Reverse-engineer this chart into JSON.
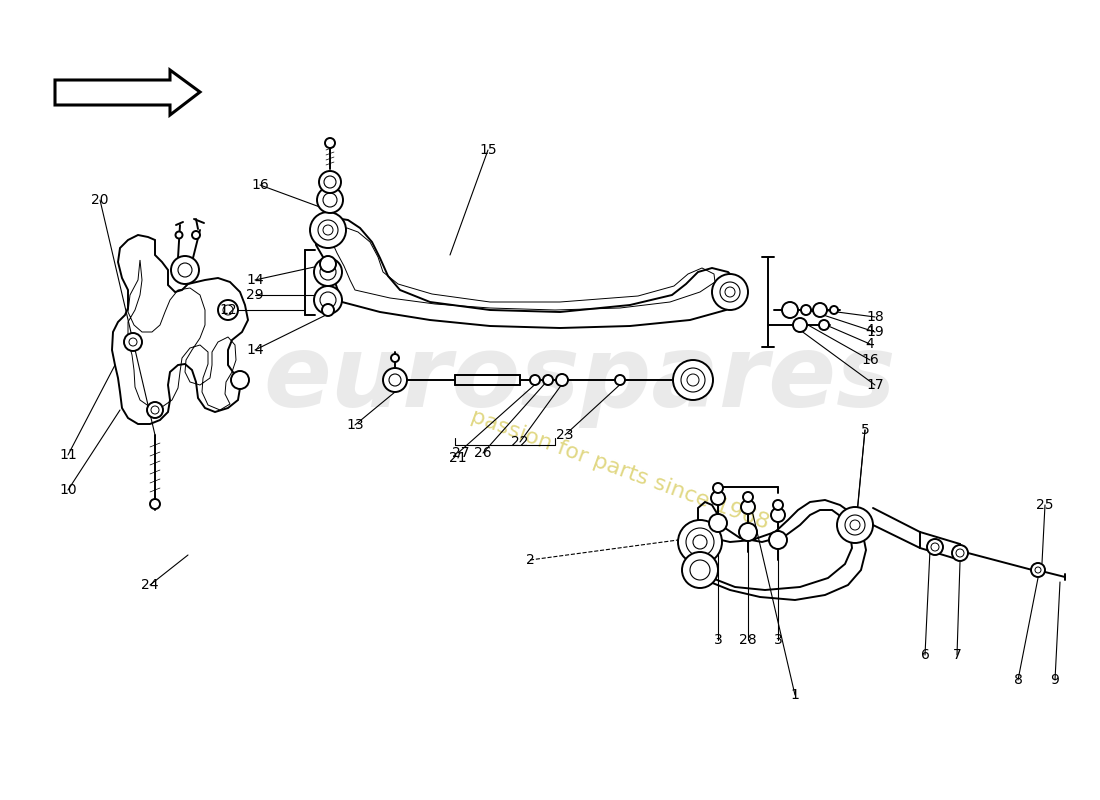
{
  "bg_color": "#ffffff",
  "line_color": "#000000",
  "lw_main": 1.4,
  "lw_thin": 0.8,
  "label_fs": 10,
  "watermark_text": "eurospares",
  "watermark_subtext": "passion for parts since 1968",
  "labels": [
    [
      "1",
      795,
      105
    ],
    [
      "2",
      530,
      240
    ],
    [
      "3",
      718,
      160
    ],
    [
      "28",
      748,
      160
    ],
    [
      "3",
      778,
      160
    ],
    [
      "4",
      870,
      470
    ],
    [
      "5",
      865,
      370
    ],
    [
      "6",
      925,
      145
    ],
    [
      "7",
      957,
      145
    ],
    [
      "8",
      1018,
      120
    ],
    [
      "9",
      1055,
      120
    ],
    [
      "10",
      68,
      310
    ],
    [
      "11",
      68,
      345
    ],
    [
      "12",
      228,
      490
    ],
    [
      "13",
      355,
      375
    ],
    [
      "14",
      255,
      450
    ],
    [
      "14",
      255,
      520
    ],
    [
      "15",
      488,
      650
    ],
    [
      "16",
      260,
      615
    ],
    [
      "17",
      875,
      415
    ],
    [
      "16",
      870,
      440
    ],
    [
      "4",
      870,
      456
    ],
    [
      "19",
      875,
      468
    ],
    [
      "18",
      875,
      483
    ],
    [
      "20",
      100,
      600
    ],
    [
      "21",
      458,
      342
    ],
    [
      "22",
      520,
      358
    ],
    [
      "23",
      565,
      365
    ],
    [
      "24",
      150,
      215
    ],
    [
      "25",
      1045,
      295
    ],
    [
      "26",
      483,
      347
    ],
    [
      "27",
      461,
      347
    ],
    [
      "29",
      255,
      505
    ]
  ]
}
